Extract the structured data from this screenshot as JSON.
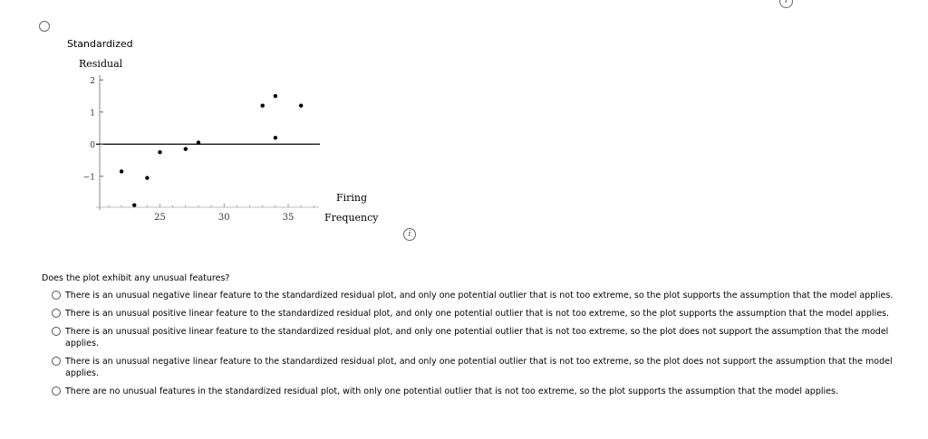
{
  "chart_data": {
    "type": "scatter",
    "xlabel": [
      "Firing",
      "Frequency"
    ],
    "ylabel": [
      "Standardized",
      "Residual"
    ],
    "x_ticks": [
      25,
      30,
      35
    ],
    "y_ticks": [
      2,
      1,
      0,
      -1
    ],
    "y_tick_labels": [
      "2",
      "1",
      "0",
      "−1"
    ],
    "xlim": [
      20.3,
      37.4
    ],
    "ylim": [
      -2.05,
      2.15
    ],
    "reference_line_y": 0,
    "points": [
      {
        "x": 22,
        "y": -0.85
      },
      {
        "x": 23,
        "y": -1.9
      },
      {
        "x": 24,
        "y": -1.05
      },
      {
        "x": 25,
        "y": -0.25
      },
      {
        "x": 27,
        "y": -0.15
      },
      {
        "x": 28,
        "y": 0.05
      },
      {
        "x": 33,
        "y": 1.2
      },
      {
        "x": 34,
        "y": 1.5
      },
      {
        "x": 34,
        "y": 0.2
      },
      {
        "x": 36,
        "y": 1.2
      }
    ]
  },
  "question": "Does the plot exhibit any unusual features?",
  "options": [
    "There is an unusual negative linear feature to the standardized residual plot, and only one potential outlier that is not too extreme, so the plot supports the assumption that the model applies.",
    "There is an unusual positive linear feature to the standardized residual plot, and only one potential outlier that is not too extreme, so the plot supports the assumption that the model applies.",
    "There is an unusual positive linear feature to the standardized residual plot, and only one potential outlier that is not too extreme, so the plot does not support the assumption that the model applies.",
    "There is an unusual negative linear feature to the standardized residual plot, and only one potential outlier that is not too extreme, so the plot does not support the assumption that the model applies.",
    "There are no unusual features in the standardized residual plot, with only one potential outlier that is not too extreme, so the plot supports the assumption that the model applies."
  ],
  "icons": {
    "info": "info-icon",
    "radio": "radio-button-icon"
  }
}
